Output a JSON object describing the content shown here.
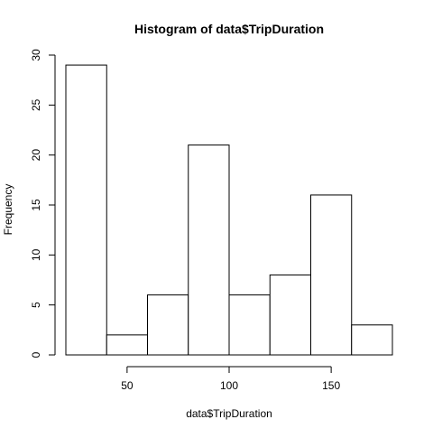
{
  "chart_data": {
    "type": "bar",
    "subtype": "histogram",
    "title": "Histogram of data$TripDuration",
    "xlabel": "data$TripDuration",
    "ylabel": "Frequency",
    "bins": [
      {
        "start": 20,
        "end": 40,
        "count": 29
      },
      {
        "start": 40,
        "end": 60,
        "count": 2
      },
      {
        "start": 60,
        "end": 80,
        "count": 6
      },
      {
        "start": 80,
        "end": 100,
        "count": 21
      },
      {
        "start": 100,
        "end": 120,
        "count": 6
      },
      {
        "start": 120,
        "end": 140,
        "count": 8
      },
      {
        "start": 140,
        "end": 160,
        "count": 16
      },
      {
        "start": 160,
        "end": 180,
        "count": 3
      }
    ],
    "xticks": [
      50,
      100,
      150
    ],
    "yticks": [
      0,
      5,
      10,
      15,
      20,
      25,
      30
    ],
    "xlim": [
      20,
      180
    ],
    "ylim": [
      0,
      30
    ],
    "grid": false,
    "colors": {
      "bar_fill": "#ffffff",
      "bar_stroke": "#000000",
      "background": "#ffffff"
    }
  }
}
